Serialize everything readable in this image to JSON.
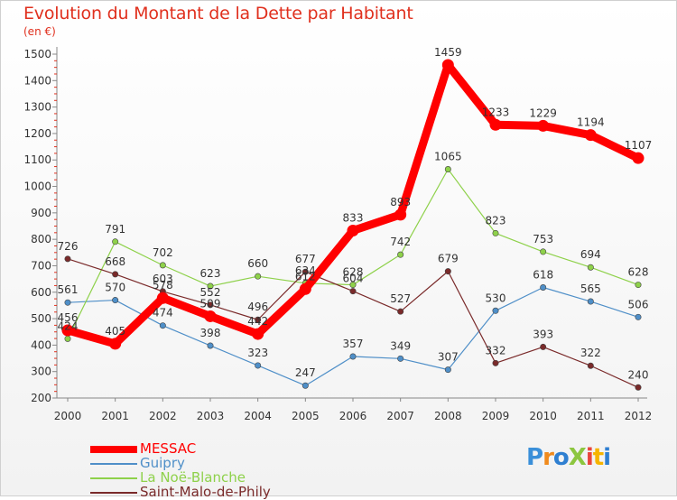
{
  "title": "Evolution du Montant de la Dette par Habitant",
  "unit": "(en €)",
  "logo_text": "ProXiti",
  "chart_data": {
    "type": "line",
    "title": "Evolution du Montant de la Dette par Habitant",
    "ylabel": "(en €)",
    "xlabel": "",
    "x": [
      "2000",
      "2001",
      "2002",
      "2003",
      "2004",
      "2005",
      "2006",
      "2007",
      "2008",
      "2009",
      "2010",
      "2011",
      "2012"
    ],
    "ylim": [
      200,
      1500
    ],
    "yticks": [
      200,
      300,
      400,
      500,
      600,
      700,
      800,
      900,
      1000,
      1100,
      1200,
      1300,
      1400,
      1500
    ],
    "grid": false,
    "legend_position": "bottom-left",
    "series": [
      {
        "name": "MESSAC",
        "color": "#ff0000",
        "values": [
          456,
          405,
          578,
          509,
          442,
          612,
          833,
          893,
          1459,
          1233,
          1229,
          1194,
          1107
        ]
      },
      {
        "name": "Guipry",
        "color": "#4f8fc8",
        "values": [
          561,
          570,
          474,
          398,
          323,
          247,
          357,
          349,
          307,
          530,
          618,
          565,
          506
        ]
      },
      {
        "name": "La Noë-Blanche",
        "color": "#8ed14a",
        "values": [
          424,
          791,
          702,
          623,
          660,
          634,
          628,
          742,
          1065,
          823,
          753,
          694,
          628
        ]
      },
      {
        "name": "Saint-Malo-de-Phily",
        "color": "#7a2a2a",
        "values": [
          726,
          668,
          603,
          552,
          496,
          677,
          604,
          527,
          679,
          332,
          393,
          322,
          240
        ]
      }
    ]
  }
}
